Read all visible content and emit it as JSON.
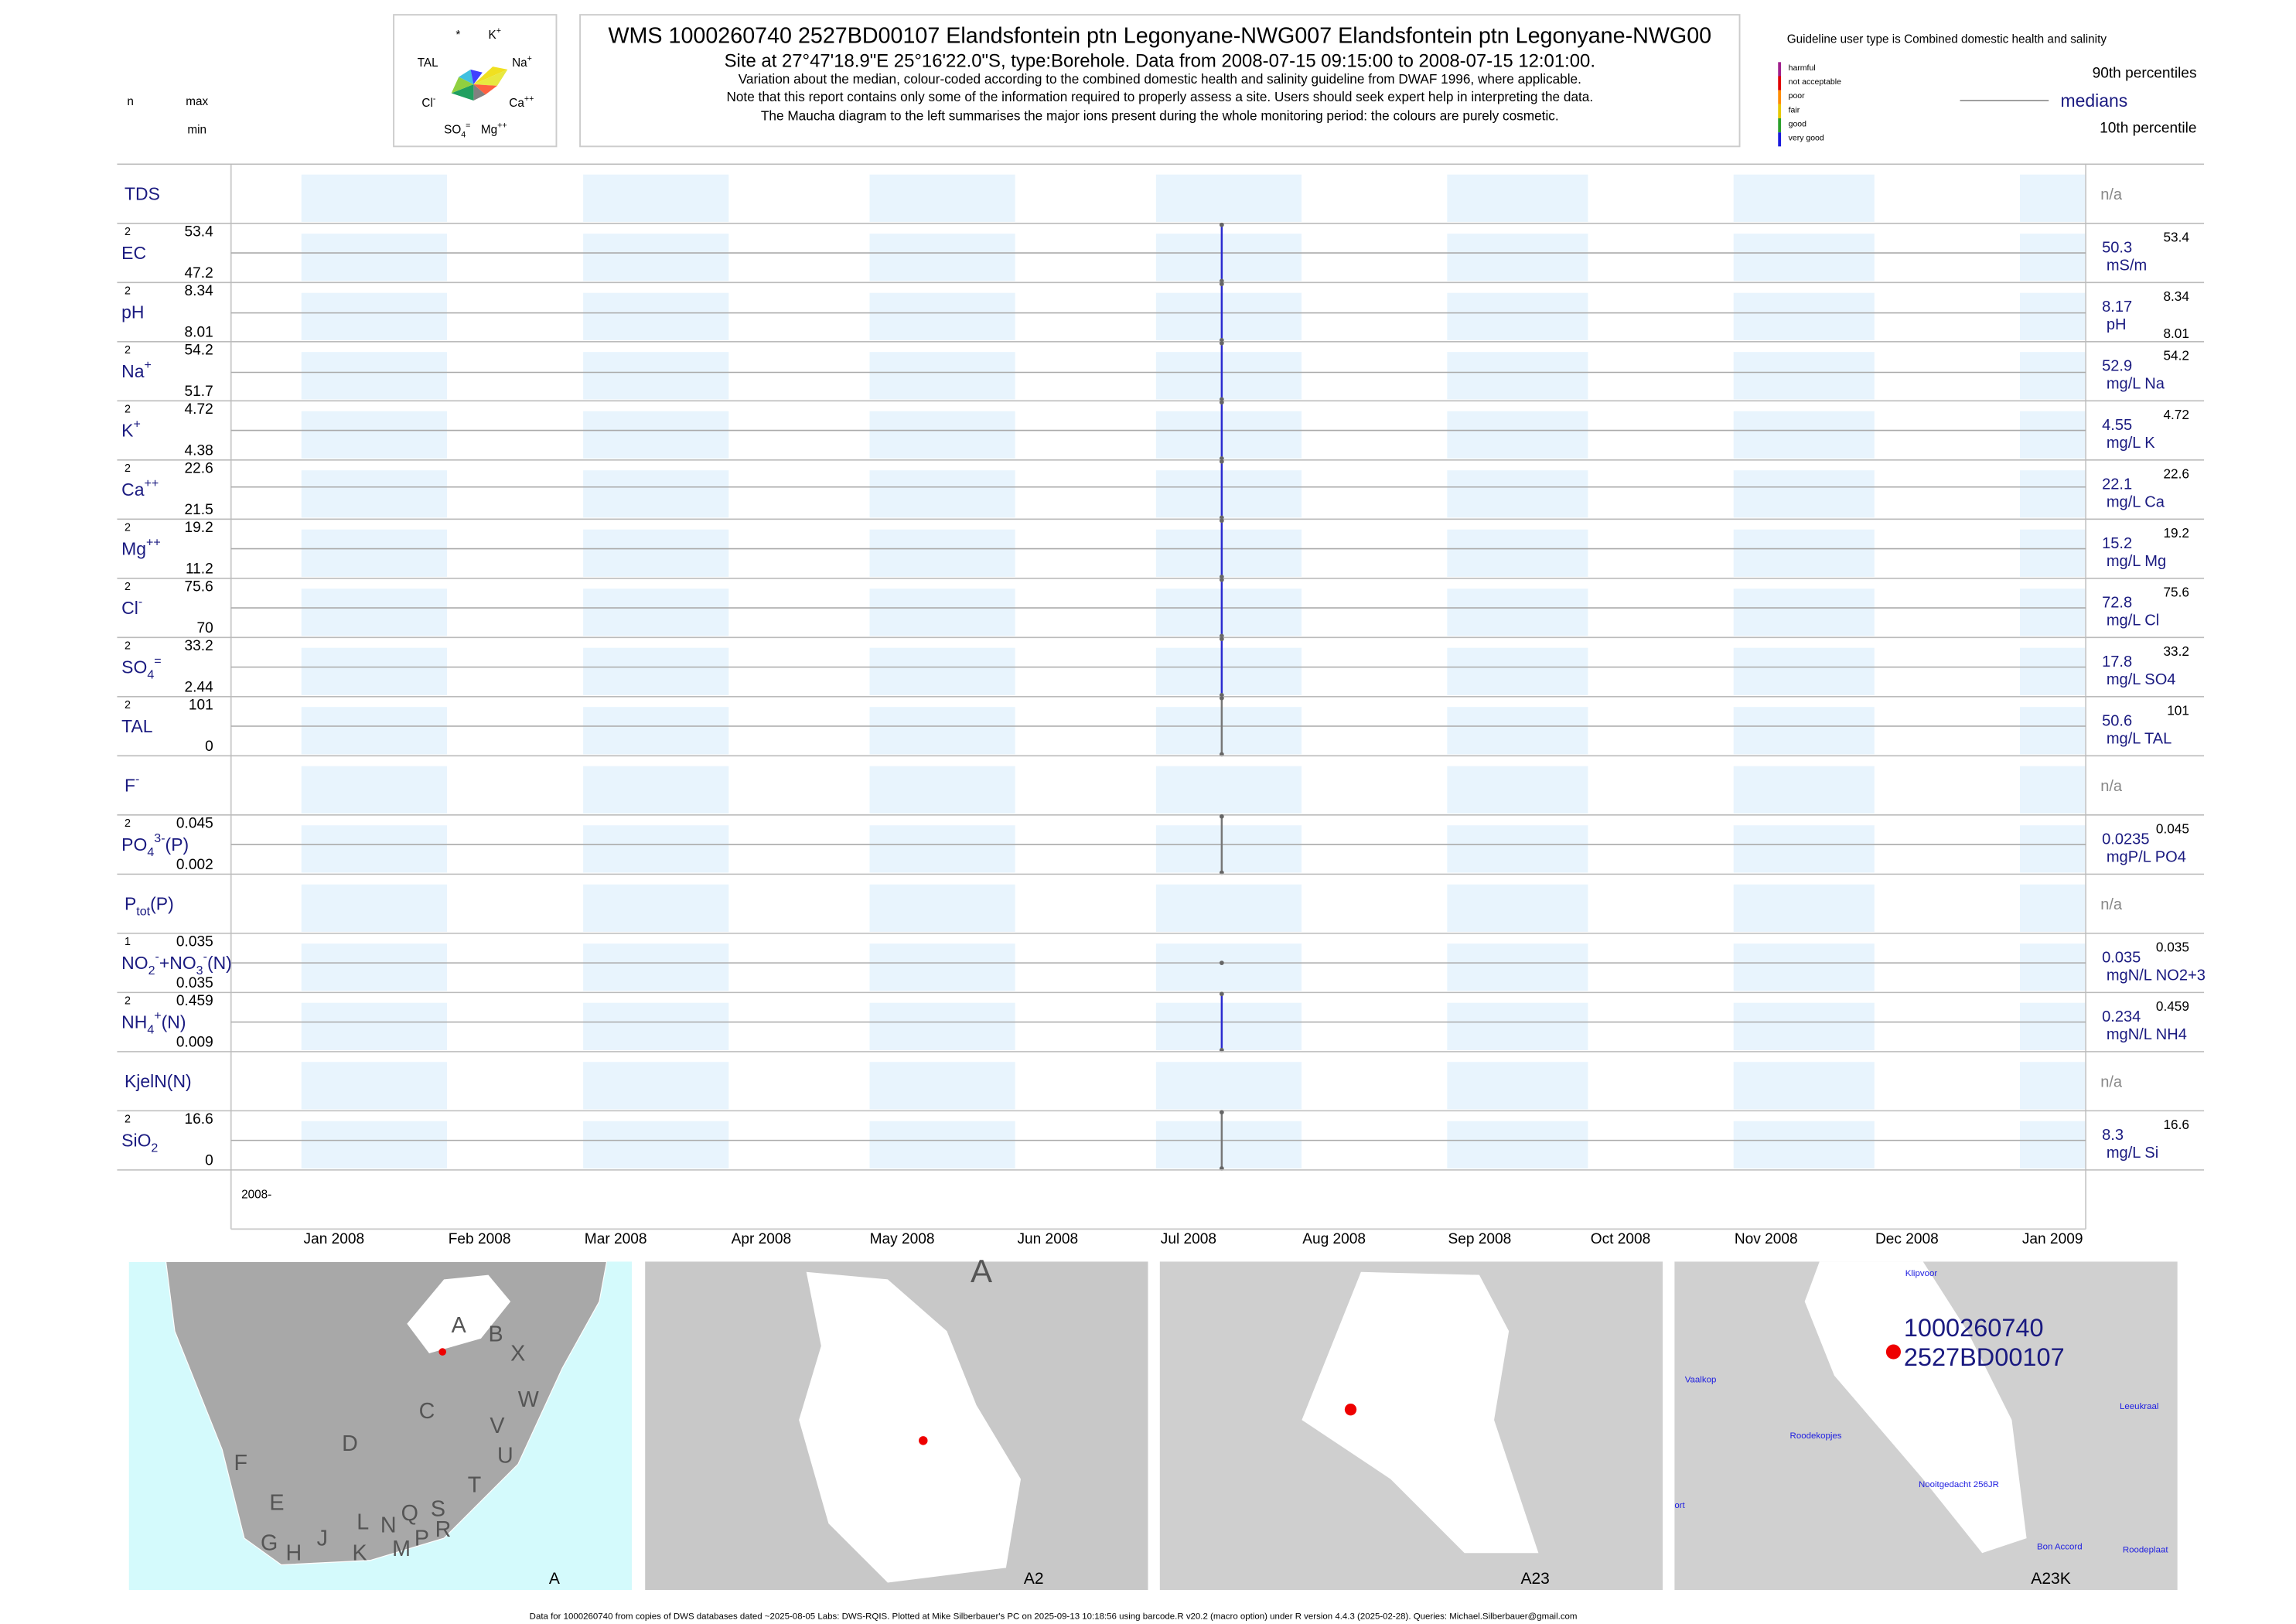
{
  "header": {
    "n_label": "n",
    "max_label": "max",
    "min_label": "min",
    "title": "WMS 1000260740 2527BD00107 Elandsfontein ptn Legonyane-NWG007 Elandsfontein ptn Legonyane-NWG00",
    "subtitle": "Site at 27°47'18.9\"E 25°16'22.0\"S, type:Borehole.  Data from 2008-07-15 09:15:00 to 2008-07-15 12:01:00.",
    "notes": [
      "Variation about the median,  colour-coded according to the combined domestic health and salinity guideline from DWAF 1996, where applicable.",
      "Note that this report contains only some of the information required to properly assess a site. Users should seek expert help in interpreting the data.",
      "The Maucha diagram to the left summarises the major ions present during the whole monitoring period: the colours are purely cosmetic."
    ]
  },
  "maucha": {
    "labels": [
      [
        {
          "t": "*"
        }
      ],
      [
        {
          "t": "K",
          "sup": "+"
        }
      ],
      [
        {
          "t": "TAL"
        }
      ],
      [
        {
          "t": "Na",
          "sup": "+"
        }
      ],
      [
        {
          "t": "Cl",
          "sup": "-"
        }
      ],
      [
        {
          "t": "Ca",
          "sup": "++"
        }
      ],
      [
        {
          "t": "SO",
          "sub": "4",
          "sup": "="
        }
      ],
      [
        {
          "t": "Mg",
          "sup": "++"
        }
      ]
    ]
  },
  "legend": {
    "guideline": "Guideline user type is Combined domestic health and salinity",
    "classes": [
      {
        "label": "harmful",
        "color": "#a0208c"
      },
      {
        "label": "not acceptable",
        "color": "#e00000"
      },
      {
        "label": "poor",
        "color": "#ff8c00"
      },
      {
        "label": "fair",
        "color": "#e6c800"
      },
      {
        "label": "good",
        "color": "#2ca02c"
      },
      {
        "label": "very good",
        "color": "#1a1adc"
      }
    ],
    "p90": "90th percentiles",
    "medians": "medians",
    "p10": "10th percentile"
  },
  "chart_data": {
    "type": "strip",
    "date": "2008-07-15",
    "xlim": [
      "2007-12-17",
      "2009-01-15"
    ],
    "xticks": [
      {
        "value": "2008-01-01",
        "label": "Jan 2008"
      },
      {
        "value": "2008-02-01",
        "label": "Feb 2008"
      },
      {
        "value": "2008-03-01",
        "label": "Mar 2008"
      },
      {
        "value": "2008-04-01",
        "label": "Apr 2008"
      },
      {
        "value": "2008-05-01",
        "label": "May 2008"
      },
      {
        "value": "2008-06-01",
        "label": "Jun 2008"
      },
      {
        "value": "2008-07-01",
        "label": "Jul 2008"
      },
      {
        "value": "2008-08-01",
        "label": "Aug 2008"
      },
      {
        "value": "2008-09-01",
        "label": "Sep 2008"
      },
      {
        "value": "2008-10-01",
        "label": "Oct 2008"
      },
      {
        "value": "2008-11-01",
        "label": "Nov 2008"
      },
      {
        "value": "2008-12-01",
        "label": "Dec 2008"
      },
      {
        "value": "2009-01-01",
        "label": "Jan 2009"
      }
    ],
    "year_label": "2008-",
    "na_label": "n/a",
    "band_color": "#e8f4fd",
    "rows": [
      {
        "label": [
          {
            "t": "TDS"
          }
        ]
      },
      {
        "label": [
          {
            "t": "EC"
          }
        ],
        "n": 2,
        "max": 53.4,
        "min": 47.2,
        "median": 50.3,
        "unit": "mS/m",
        "color": "#2b2bd0"
      },
      {
        "label": [
          {
            "t": "pH"
          }
        ],
        "n": 2,
        "max": 8.34,
        "min": 8.01,
        "median": 8.17,
        "unit": "pH",
        "color": "#2b2bd0",
        "show_min_right": true
      },
      {
        "label": [
          {
            "t": "Na",
            "sup": "+"
          }
        ],
        "n": 2,
        "max": 54.2,
        "min": 51.7,
        "median": 52.9,
        "unit": "mg/L Na",
        "color": "#2b2bd0"
      },
      {
        "label": [
          {
            "t": "K",
            "sup": "+"
          }
        ],
        "n": 2,
        "max": 4.72,
        "min": 4.38,
        "median": 4.55,
        "unit": "mg/L K",
        "color": "#2b2bd0"
      },
      {
        "label": [
          {
            "t": "Ca",
            "sup": "++"
          }
        ],
        "n": 2,
        "max": 22.6,
        "min": 21.5,
        "median": 22.1,
        "unit": "mg/L Ca",
        "color": "#2b2bd0"
      },
      {
        "label": [
          {
            "t": "Mg",
            "sup": "++"
          }
        ],
        "n": 2,
        "max": 19.2,
        "min": 11.2,
        "median": 15.2,
        "unit": "mg/L Mg",
        "color": "#2b2bd0"
      },
      {
        "label": [
          {
            "t": "Cl",
            "sup": "-"
          }
        ],
        "n": 2,
        "max": 75.6,
        "min": 70,
        "median": 72.8,
        "unit": "mg/L Cl",
        "color": "#2b2bd0"
      },
      {
        "label": [
          {
            "t": "SO",
            "sub": "4",
            "sup": "="
          }
        ],
        "n": 2,
        "max": 33.2,
        "min": 2.44,
        "median": 17.8,
        "unit": "mg/L SO4",
        "color": "#2b2bd0"
      },
      {
        "label": [
          {
            "t": "TAL"
          }
        ],
        "n": 2,
        "max": 101,
        "min": 0,
        "median": 50.6,
        "unit": "mg/L TAL",
        "color": "#777777"
      },
      {
        "label": [
          {
            "t": "F",
            "sup": "-"
          }
        ]
      },
      {
        "label": [
          {
            "t": "PO",
            "sub": "4",
            "sup": "3-"
          },
          {
            "t": "(P)"
          }
        ],
        "n": 2,
        "max": 0.045,
        "min": 0.002,
        "median": 0.0235,
        "unit": "mgP/L PO4",
        "color": "#777777"
      },
      {
        "label": [
          {
            "t": "P",
            "sub": "tot"
          },
          {
            "t": "(P)"
          }
        ]
      },
      {
        "label": [
          {
            "t": "NO",
            "sub": "2",
            "sup": "-"
          },
          {
            "t": "+NO",
            "sub": "3",
            "sup": "-"
          },
          {
            "t": "(N)"
          }
        ],
        "n": 1,
        "max": 0.035,
        "min": 0.035,
        "median": 0.035,
        "unit": "mgN/L NO2+3",
        "color": "#777777"
      },
      {
        "label": [
          {
            "t": "NH",
            "sub": "4",
            "sup": "+"
          },
          {
            "t": "(N)"
          }
        ],
        "n": 2,
        "max": 0.459,
        "min": 0.009,
        "median": 0.234,
        "unit": "mgN/L NH4",
        "color": "#2b2bd0"
      },
      {
        "label": [
          {
            "t": "KjelN(N)"
          }
        ]
      },
      {
        "label": [
          {
            "t": "SiO",
            "sub": "2"
          }
        ],
        "n": 2,
        "max": 16.6,
        "min": 0,
        "median": 8.3,
        "unit": "mg/L Si",
        "color": "#777777"
      }
    ]
  },
  "maps": [
    {
      "caption": "A",
      "labels": [
        "A",
        "B",
        "X",
        "W",
        "C",
        "D",
        "V",
        "U",
        "T",
        "F",
        "E",
        "G",
        "H",
        "J",
        "K",
        "L",
        "N",
        "M",
        "Q",
        "P",
        "S",
        "R"
      ]
    },
    {
      "caption": "A2",
      "labels": [
        "A"
      ]
    },
    {
      "caption": "A23",
      "labels": []
    },
    {
      "caption": "A23K",
      "labels": [
        "1000260740",
        "2527BD00107",
        "Klipvoor",
        "Vaalkop",
        "Leeukraal",
        "Roodekopjes",
        "Nooitgedacht 256JR",
        "ort",
        "Bon Accord",
        "Roodeplaat"
      ]
    }
  ],
  "footer": "Data for 1000260740 from copies of DWS databases dated ~2025-08-05 Labs: DWS-RQIS. Plotted at Mike Silberbauer's PC on 2025-09-13 10:18:56 using barcode.R v20.2 (macro option) under R version 4.4.3 (2025-02-28). Queries: Michael.Silberbauer@gmail.com"
}
